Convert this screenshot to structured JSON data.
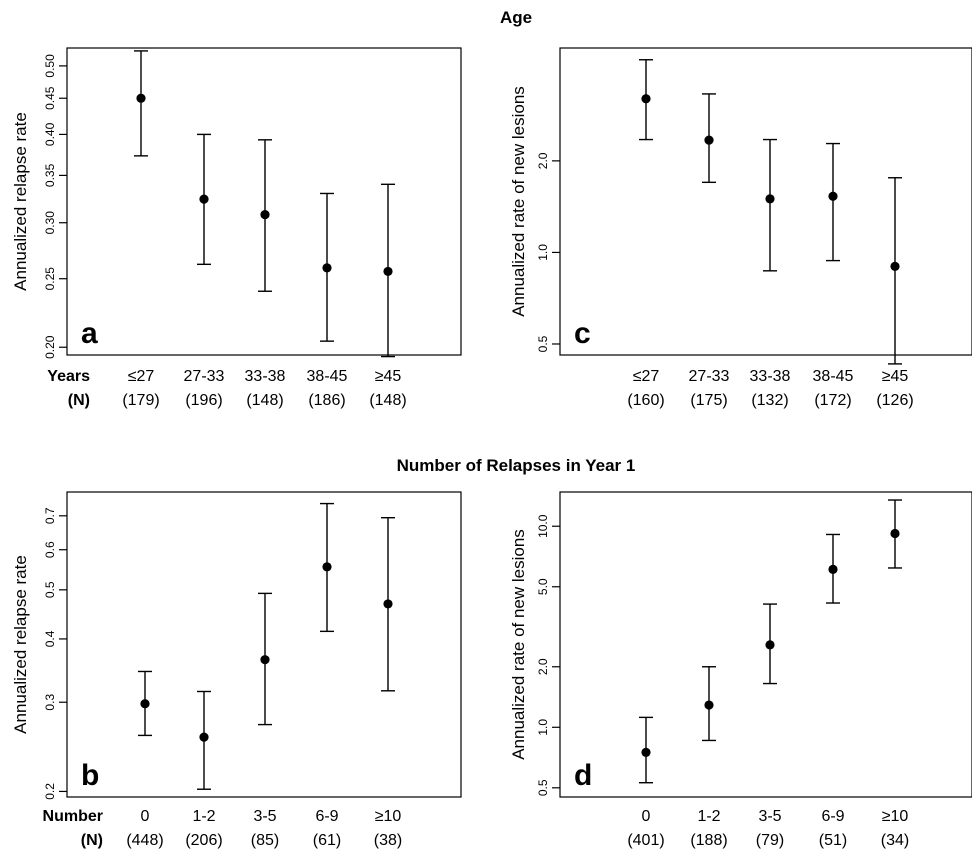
{
  "figure": {
    "section_titles": [
      "Age",
      "Number of Relapses in Year 1"
    ]
  },
  "chart_data": [
    {
      "panel": "a",
      "type": "scatter",
      "ylabel": "Annualized relapse rate",
      "y_scale": "log",
      "ylim": [
        0.195,
        0.53
      ],
      "yticks": [
        0.2,
        0.25,
        0.3,
        0.35,
        0.4,
        0.45,
        0.5
      ],
      "ytick_labels": [
        "0.20",
        "0.25",
        "0.30",
        "0.35",
        "0.40",
        "0.45",
        "0.50"
      ],
      "row_labels": [
        "Years",
        "(N)"
      ],
      "categories": [
        "≤27",
        "27-33",
        "33-38",
        "38-45",
        "≥45"
      ],
      "n": [
        "(179)",
        "(196)",
        "(148)",
        "(186)",
        "(148)"
      ],
      "values": [
        0.45,
        0.324,
        0.308,
        0.259,
        0.256
      ],
      "lower": [
        0.373,
        0.262,
        0.24,
        0.204,
        0.194
      ],
      "upper": [
        0.525,
        0.4,
        0.393,
        0.33,
        0.34
      ]
    },
    {
      "panel": "c",
      "type": "scatter",
      "ylabel": "Annualized rate of new lesions",
      "y_scale": "log",
      "ylim": [
        0.46,
        4.7
      ],
      "yticks": [
        0.5,
        1.0,
        2.0
      ],
      "ytick_labels": [
        "0.5",
        "1.0",
        "2.0"
      ],
      "row_labels": [
        "",
        ""
      ],
      "categories": [
        "≤27",
        "27-33",
        "33-38",
        "38-45",
        "≥45"
      ],
      "n": [
        "(160)",
        "(175)",
        "(132)",
        "(172)",
        "(126)"
      ],
      "values": [
        3.2,
        2.34,
        1.5,
        1.53,
        0.9
      ],
      "lower": [
        2.35,
        1.7,
        0.87,
        0.94,
        0.43
      ],
      "upper": [
        4.3,
        3.32,
        2.35,
        2.28,
        1.76
      ]
    },
    {
      "panel": "b",
      "type": "scatter",
      "ylabel": "Annualized relapse rate",
      "y_scale": "log",
      "ylim": [
        0.195,
        0.78
      ],
      "yticks": [
        0.2,
        0.3,
        0.4,
        0.5,
        0.6,
        0.7
      ],
      "ytick_labels": [
        "0.2",
        "0.3",
        "0.4",
        "0.5",
        "0.6",
        "0.7"
      ],
      "row_labels": [
        "Number",
        "(N)"
      ],
      "categories": [
        "0",
        "1-2",
        "3-5",
        "6-9",
        "≥10"
      ],
      "n": [
        "(448)",
        "(206)",
        "(85)",
        "(61)",
        "(38)"
      ],
      "values": [
        0.298,
        0.256,
        0.364,
        0.555,
        0.469
      ],
      "lower": [
        0.258,
        0.202,
        0.271,
        0.414,
        0.316
      ],
      "upper": [
        0.345,
        0.315,
        0.492,
        0.74,
        0.694
      ]
    },
    {
      "panel": "d",
      "type": "scatter",
      "ylabel": "Annualized rate of new lesions",
      "y_scale": "log",
      "ylim": [
        0.45,
        14.8
      ],
      "yticks": [
        0.5,
        1.0,
        2.0,
        5.0,
        10.0
      ],
      "ytick_labels": [
        "0.5",
        "1.0",
        "2.0",
        "5.0",
        "10.0"
      ],
      "row_labels": [
        "",
        ""
      ],
      "categories": [
        "0",
        "1-2",
        "3-5",
        "6-9",
        "≥10"
      ],
      "n": [
        "(401)",
        "(188)",
        "(79)",
        "(51)",
        "(34)"
      ],
      "values": [
        0.75,
        1.29,
        2.57,
        6.1,
        9.2
      ],
      "lower": [
        0.53,
        0.86,
        1.65,
        4.15,
        6.2
      ],
      "upper": [
        1.12,
        2.0,
        4.1,
        9.1,
        13.5
      ]
    }
  ]
}
